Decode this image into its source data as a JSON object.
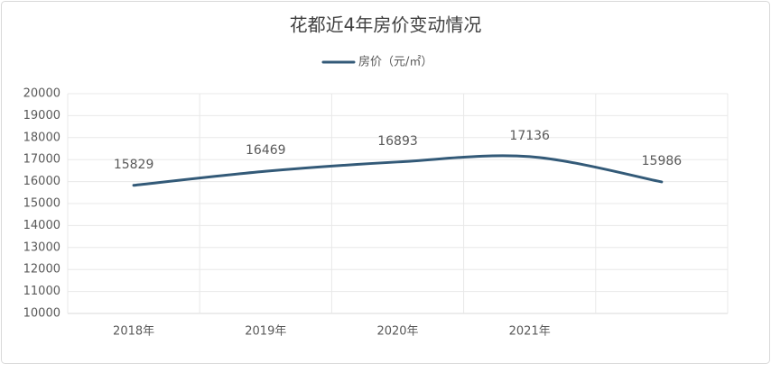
{
  "chart_data": {
    "type": "line",
    "title": "花都近4年房价变动情况",
    "categories": [
      "2018年",
      "2019年",
      "2020年",
      "2021年",
      null
    ],
    "series": [
      {
        "name": "房价（元/㎡）",
        "color": "#335a78",
        "values": [
          15829,
          16469,
          16893,
          17136,
          15986
        ]
      }
    ],
    "ylim": [
      10000,
      20000
    ],
    "yticks": [
      10000,
      11000,
      12000,
      13000,
      14000,
      15000,
      16000,
      17000,
      18000,
      19000,
      20000
    ],
    "grid": true,
    "smooth": true,
    "legend": "top"
  }
}
